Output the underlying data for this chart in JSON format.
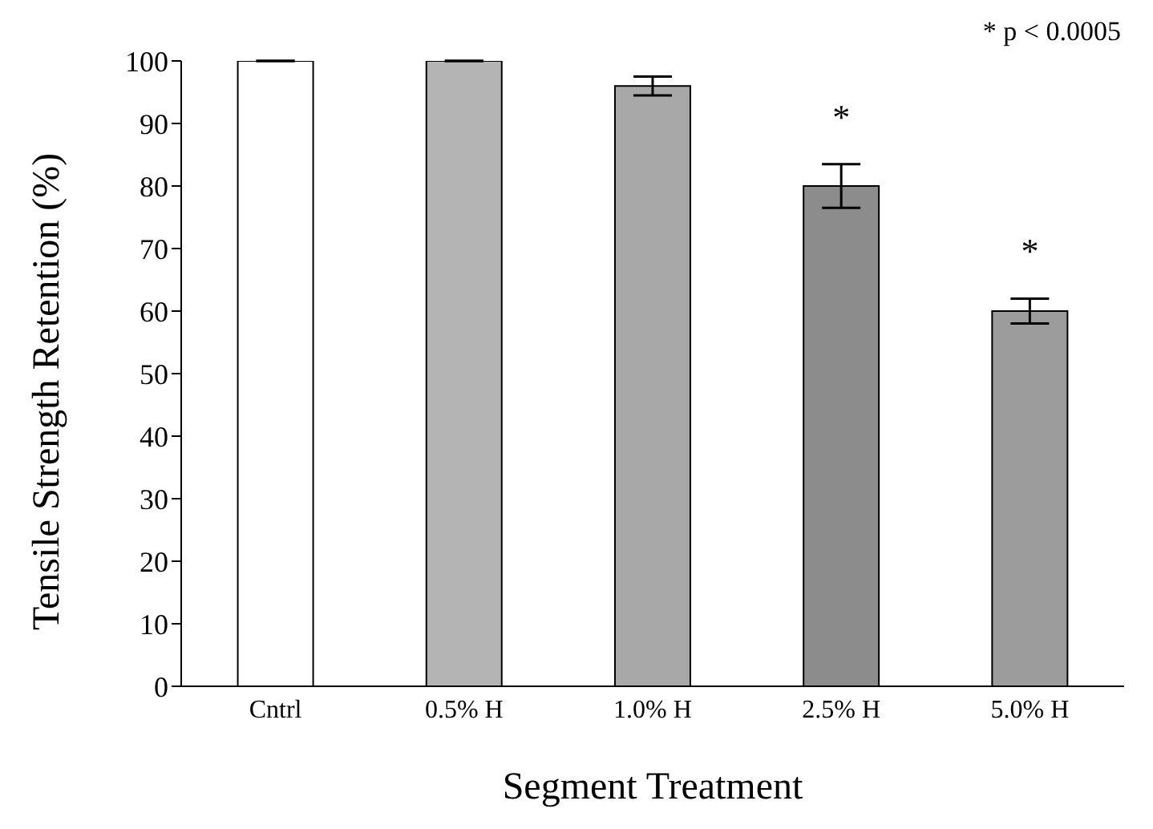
{
  "chart_data": {
    "type": "bar",
    "xlabel": "Segment Treatment",
    "ylabel": "Tensile Strength Retention (%)",
    "categories": [
      "Cntrl",
      "0.5% H",
      "1.0% H",
      "2.5% H",
      "5.0% H"
    ],
    "values": [
      100,
      100,
      96,
      80,
      60
    ],
    "errors": [
      null,
      null,
      1.5,
      3.5,
      2
    ],
    "colors": [
      "#ffffff",
      "#b4b4b4",
      "#a8a8a8",
      "#8c8c8c",
      "#9c9c9c"
    ],
    "ylim": [
      0,
      100
    ],
    "yticks": [
      0,
      10,
      20,
      30,
      40,
      50,
      60,
      70,
      80,
      90,
      100
    ],
    "grid": false,
    "legend": false,
    "annotations": [
      "* p < 0.0005",
      {
        "text": "*",
        "x": "2.5% H",
        "y": 83.5
      },
      {
        "text": "*",
        "x": "5.0% H",
        "y": 62
      }
    ]
  }
}
